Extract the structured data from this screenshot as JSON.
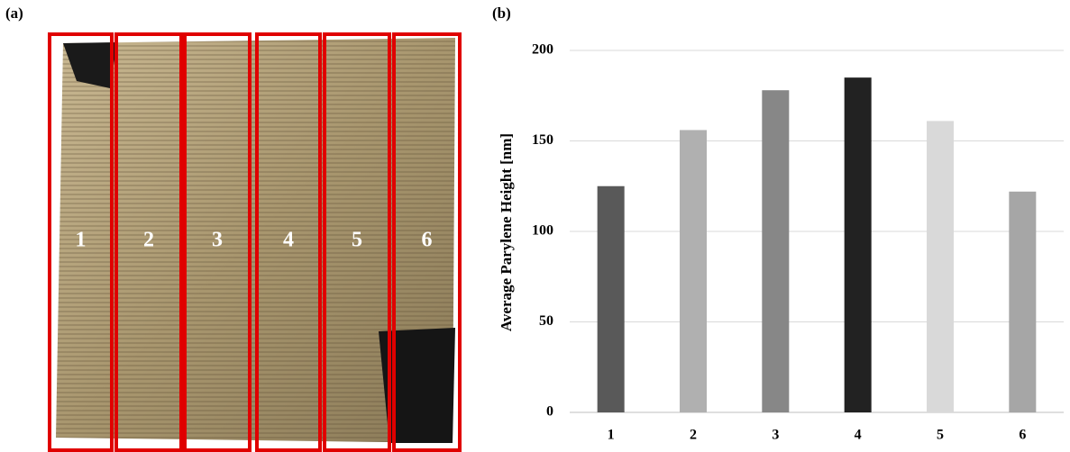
{
  "panel_a": {
    "label": "(a)",
    "regions": [
      "1",
      "2",
      "3",
      "4",
      "5",
      "6"
    ]
  },
  "chart_data": {
    "type": "bar",
    "panel_label": "(b)",
    "y_label": "Average Parylene Height [nm]",
    "categories": [
      "1",
      "2",
      "3",
      "4",
      "5",
      "6"
    ],
    "values": [
      125,
      156,
      178,
      185,
      161,
      122
    ],
    "colors": [
      "#595959",
      "#b0b0b0",
      "#878787",
      "#222222",
      "#d9d9d9",
      "#a6a6a6"
    ],
    "ylim": [
      0,
      200
    ],
    "yticks": [
      0,
      50,
      100,
      150,
      200
    ],
    "grid": true
  }
}
